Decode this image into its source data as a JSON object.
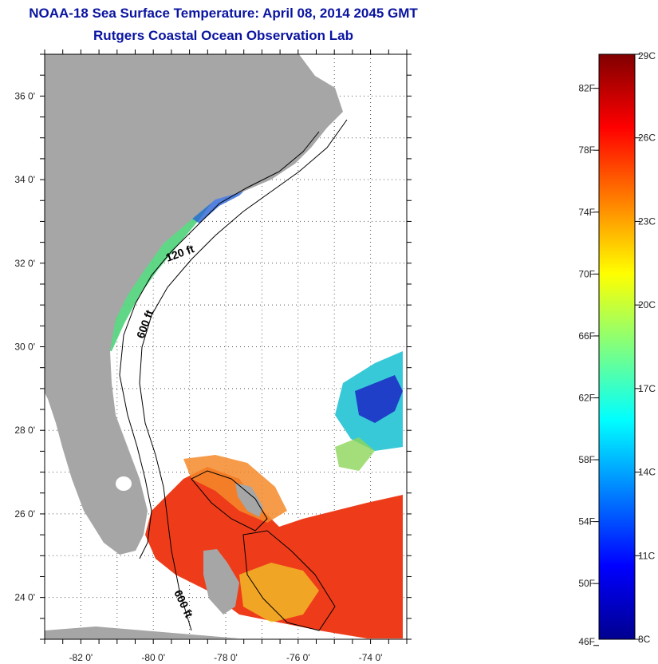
{
  "title": "NOAA-18 Sea Surface Temperature:  April 08, 2014 2045 GMT",
  "subtitle": "Rutgers Coastal Ocean Observation Lab",
  "map": {
    "lon_range": [
      -83,
      -73
    ],
    "lat_range": [
      23,
      37
    ],
    "lon_ticks": [
      {
        "value": -82,
        "label": "-82 0'"
      },
      {
        "value": -80,
        "label": "-80 0'"
      },
      {
        "value": -78,
        "label": "-78 0'"
      },
      {
        "value": -76,
        "label": "-76 0'"
      },
      {
        "value": -74,
        "label": "-74 0'"
      }
    ],
    "lat_ticks": [
      {
        "value": 24,
        "label": "24 0'"
      },
      {
        "value": 26,
        "label": "26 0'"
      },
      {
        "value": 28,
        "label": "28 0'"
      },
      {
        "value": 30,
        "label": "30 0'"
      },
      {
        "value": 32,
        "label": "32 0'"
      },
      {
        "value": 34,
        "label": "34 0'"
      },
      {
        "value": 36,
        "label": "36 0'"
      }
    ],
    "grid": true,
    "land_color": "#a6a6a6",
    "contour_labels": [
      "120 ft",
      "600 ft",
      "600 ft"
    ]
  },
  "colorbar": {
    "range_c": [
      8,
      29
    ],
    "fahrenheit_labels": [
      "82F",
      "78F",
      "74F",
      "70F",
      "66F",
      "62F",
      "58F",
      "54F",
      "50F",
      "46F"
    ],
    "celsius_labels": [
      "29C",
      "26C",
      "23C",
      "20C",
      "17C",
      "14C",
      "11C",
      "8C"
    ],
    "colormap": "jet"
  }
}
